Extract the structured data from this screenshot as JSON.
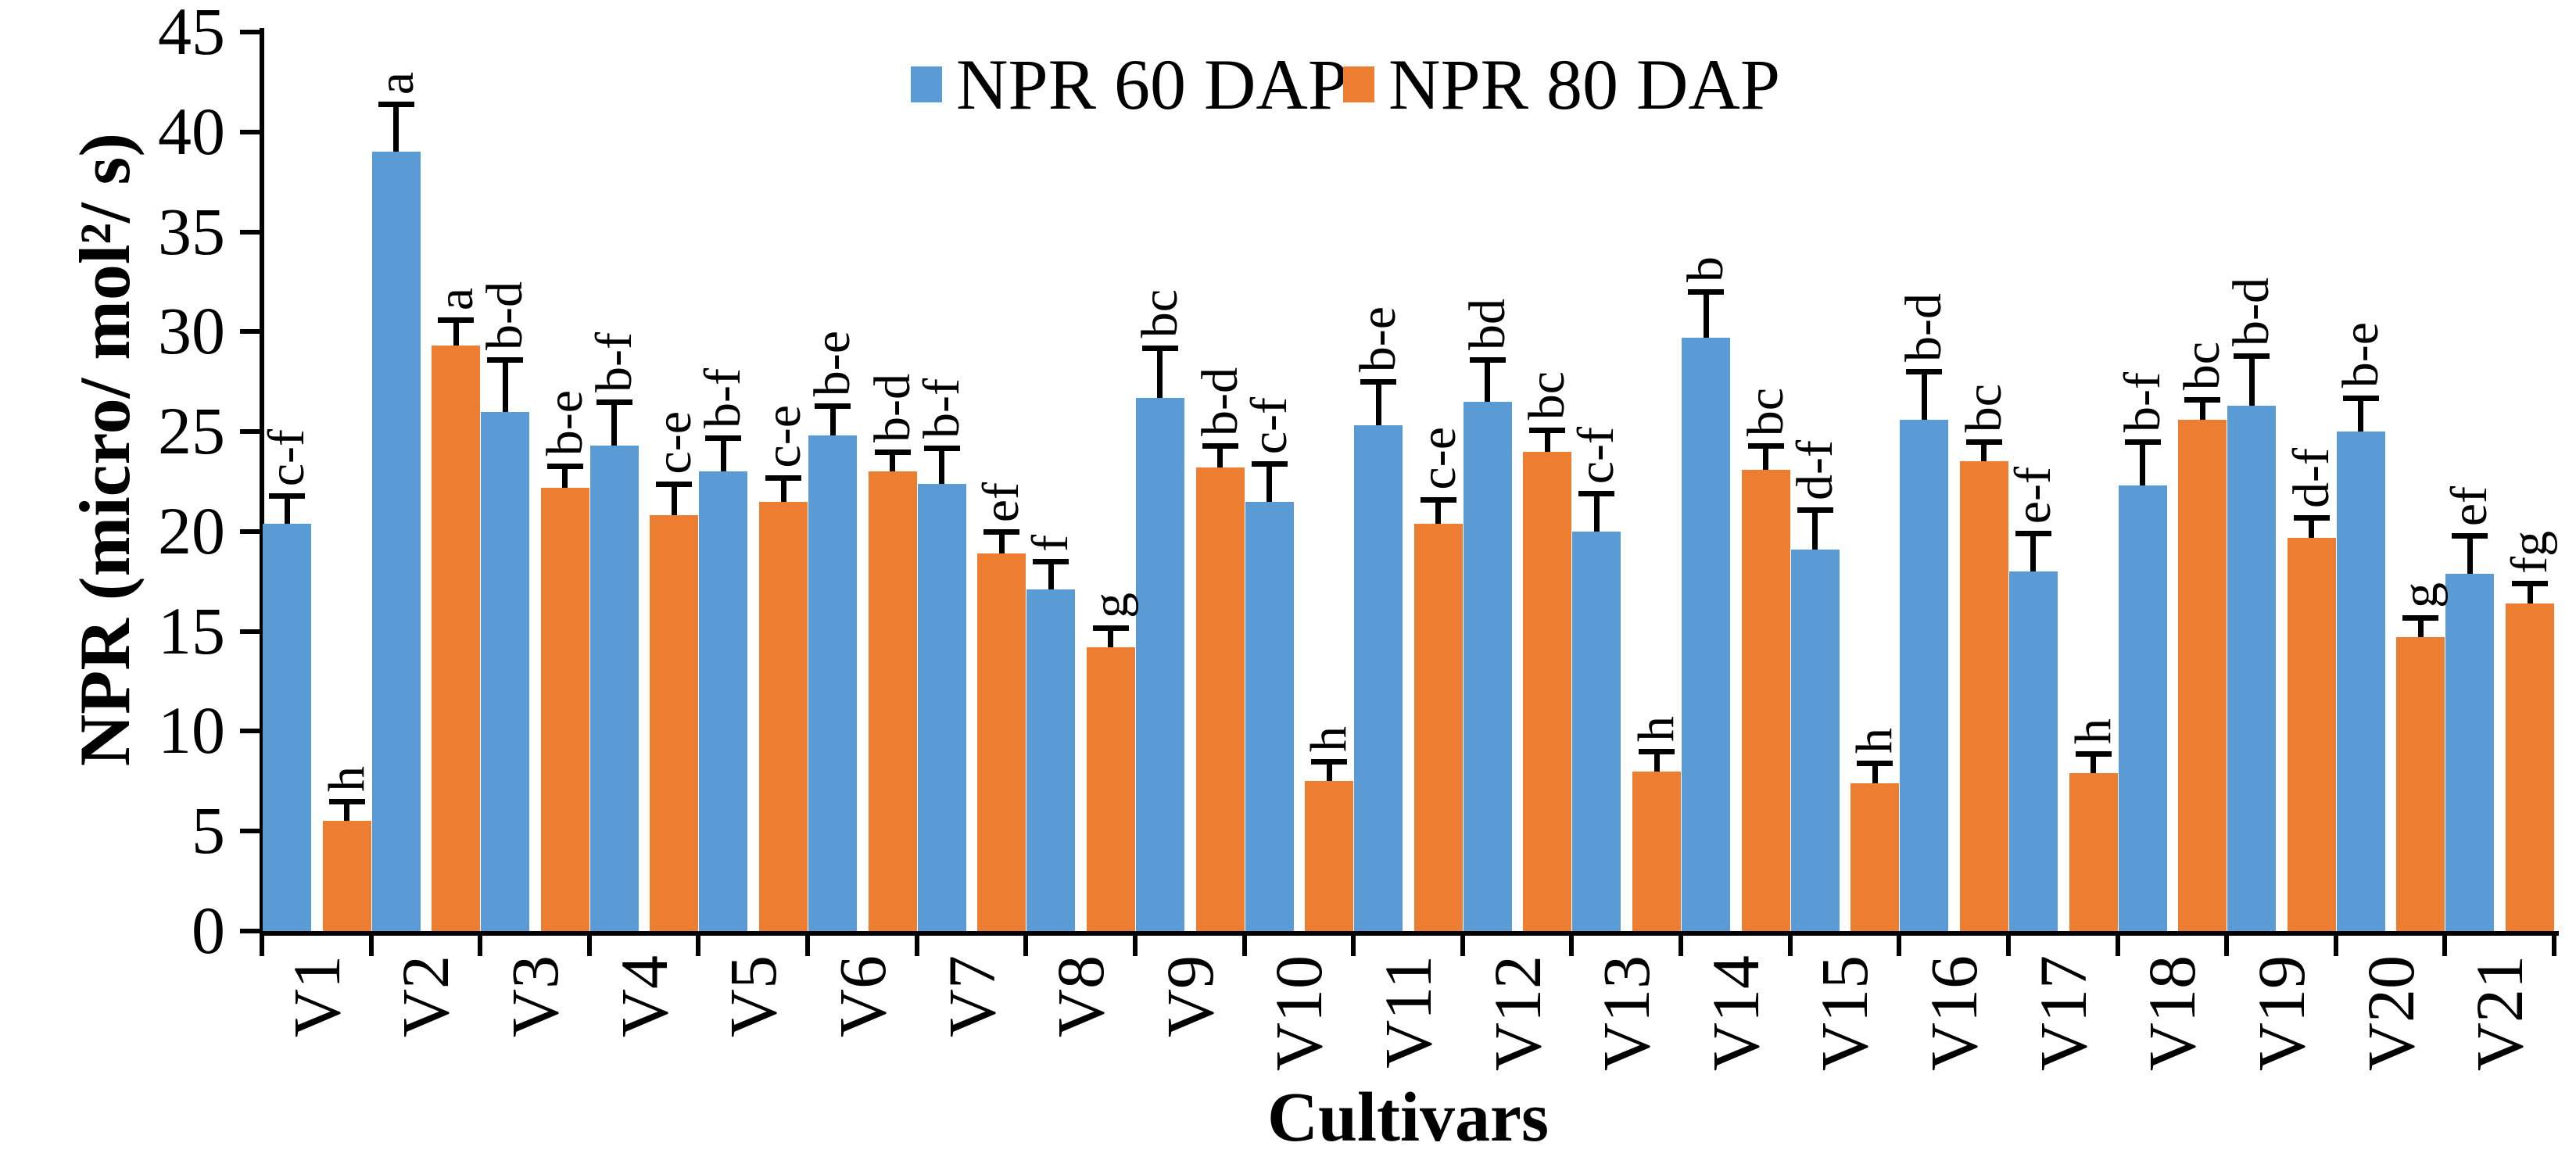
{
  "legend": {
    "items": [
      {
        "label": "NPR 60 DAP",
        "color": "#5B9BD5"
      },
      {
        "label": "NPR 80 DAP",
        "color": "#ED7D31"
      }
    ]
  },
  "axes": {
    "y": {
      "label": "NPR (micro/ mol²/ s)",
      "min": 0,
      "max": 45,
      "tick_step": 5,
      "ticks": [
        0,
        5,
        10,
        15,
        20,
        25,
        30,
        35,
        40,
        45
      ]
    },
    "x": {
      "label": "Cultivars"
    }
  },
  "chart_data": {
    "type": "bar",
    "title": "",
    "xlabel": "Cultivars",
    "ylabel": "NPR (micro/ mol²/ s)",
    "ylim": [
      0,
      45
    ],
    "grid": false,
    "legend_position": "top",
    "categories": [
      "V1",
      "V2",
      "V3",
      "V4",
      "V5",
      "V6",
      "V7",
      "V8",
      "V9",
      "V10",
      "V11",
      "V12",
      "V13",
      "V14",
      "V15",
      "V16",
      "V17",
      "V18",
      "V19",
      "V20",
      "V21"
    ],
    "series": [
      {
        "name": "NPR 60 DAP",
        "color": "#5B9BD5",
        "values": [
          20.4,
          39.0,
          26.0,
          24.3,
          23.0,
          24.8,
          22.4,
          17.1,
          26.7,
          21.5,
          25.3,
          26.5,
          20.0,
          29.7,
          19.1,
          25.6,
          18.0,
          22.3,
          26.3,
          25.0,
          17.9
        ],
        "errors": [
          1.4,
          2.4,
          2.6,
          2.2,
          1.7,
          1.5,
          1.8,
          1.4,
          2.5,
          1.9,
          2.2,
          2.1,
          1.9,
          2.3,
          2.0,
          2.4,
          1.9,
          2.2,
          2.5,
          1.7,
          1.9
        ],
        "letters": [
          "c-f",
          "a",
          "b-d",
          "b-f",
          "b-f",
          "b-e",
          "b-f",
          "f",
          "bc",
          "c-f",
          "b-e",
          "bd",
          "c-f",
          "b",
          "d-f",
          "b-d",
          "e-f",
          "b-f",
          "b-d",
          "b-e",
          "ef"
        ]
      },
      {
        "name": "NPR 80 DAP",
        "color": "#ED7D31",
        "values": [
          5.5,
          29.3,
          22.2,
          20.8,
          21.5,
          23.0,
          18.9,
          14.2,
          23.2,
          7.5,
          20.4,
          24.0,
          8.0,
          23.1,
          7.4,
          23.5,
          7.9,
          25.6,
          19.7,
          14.7,
          16.4
        ],
        "errors": [
          1.0,
          1.3,
          1.1,
          1.6,
          1.2,
          1.0,
          1.1,
          1.0,
          1.1,
          1.0,
          1.2,
          1.1,
          1.0,
          1.2,
          1.0,
          1.0,
          1.0,
          1.0,
          1.0,
          1.0,
          1.0
        ],
        "letters": [
          "h",
          "a",
          "b-e",
          "c-e",
          "c-e",
          "b-d",
          "ef",
          "g",
          "b-d",
          "h",
          "c-e",
          "bc",
          "h",
          "bc",
          "h",
          "bc",
          "h",
          "bc",
          "d-f",
          "g",
          "fg"
        ]
      }
    ]
  }
}
